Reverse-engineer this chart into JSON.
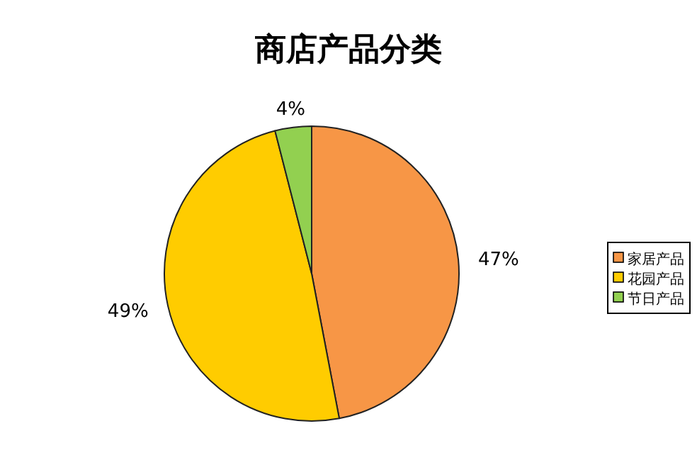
{
  "chart_data": {
    "type": "pie",
    "title": "商店产品分类",
    "categories": [
      "家居产品",
      "花园产品",
      "节日产品"
    ],
    "values": [
      47,
      49,
      4
    ],
    "colors": [
      "#f79646",
      "#ffcc00",
      "#92d050"
    ],
    "value_labels": [
      "47%",
      "49%",
      "4%"
    ],
    "legend": "right"
  }
}
